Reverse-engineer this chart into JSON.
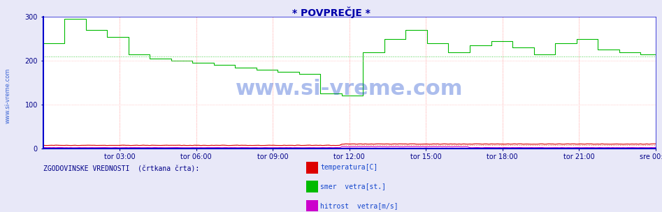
{
  "title": "* POVPREČJE *",
  "title_color": "#0000aa",
  "bg_color": "#e8e8f8",
  "plot_bg_color": "#ffffff",
  "axis_color": "#0000cc",
  "tick_color": "#000088",
  "ylim": [
    0,
    300
  ],
  "yticks": [
    0,
    100,
    200,
    300
  ],
  "xtick_labels": [
    "tor 03:00",
    "tor 06:00",
    "tor 09:00",
    "tor 12:00",
    "tor 15:00",
    "tor 18:00",
    "tor 21:00",
    "sre 00:00"
  ],
  "watermark_text": "www.si-vreme.com",
  "watermark_color": "#1144cc",
  "legend_header": "ZGODOVINSKE VREDNOSTI  (črtkana črta):",
  "legend_header_color": "#000088",
  "legend_items": [
    {
      "label": "temperatura[C]",
      "color": "#dd0000"
    },
    {
      "label": "smer  vetra[st.]",
      "color": "#00bb00"
    },
    {
      "label": "hitrost  vetra[m/s]",
      "color": "#cc00cc"
    }
  ],
  "n_points": 288,
  "wind_dir_data": [
    240,
    240,
    240,
    240,
    240,
    240,
    240,
    240,
    240,
    240,
    295,
    295,
    295,
    295,
    295,
    295,
    295,
    295,
    295,
    295,
    270,
    270,
    270,
    270,
    270,
    270,
    270,
    270,
    270,
    270,
    255,
    255,
    255,
    255,
    255,
    255,
    255,
    255,
    255,
    255,
    215,
    215,
    215,
    215,
    215,
    215,
    215,
    215,
    215,
    215,
    205,
    205,
    205,
    205,
    205,
    205,
    205,
    205,
    205,
    205,
    200,
    200,
    200,
    200,
    200,
    200,
    200,
    200,
    200,
    200,
    195,
    195,
    195,
    195,
    195,
    195,
    195,
    195,
    195,
    195,
    190,
    190,
    190,
    190,
    190,
    190,
    190,
    190,
    190,
    190,
    185,
    185,
    185,
    185,
    185,
    185,
    185,
    185,
    185,
    185,
    180,
    180,
    180,
    180,
    180,
    180,
    180,
    180,
    180,
    180,
    175,
    175,
    175,
    175,
    175,
    175,
    175,
    175,
    175,
    175,
    170,
    170,
    170,
    170,
    170,
    170,
    170,
    170,
    170,
    170,
    125,
    125,
    125,
    125,
    125,
    125,
    125,
    125,
    125,
    125,
    120,
    120,
    120,
    120,
    120,
    120,
    120,
    120,
    120,
    120,
    220,
    220,
    220,
    220,
    220,
    220,
    220,
    220,
    220,
    220,
    250,
    250,
    250,
    250,
    250,
    250,
    250,
    250,
    250,
    250,
    270,
    270,
    270,
    270,
    270,
    270,
    270,
    270,
    270,
    270,
    240,
    240,
    240,
    240,
    240,
    240,
    240,
    240,
    240,
    240,
    220,
    220,
    220,
    220,
    220,
    220,
    220,
    220,
    220,
    220,
    235,
    235,
    235,
    235,
    235,
    235,
    235,
    235,
    235,
    235,
    245,
    245,
    245,
    245,
    245,
    245,
    245,
    245,
    245,
    245,
    230,
    230,
    230,
    230,
    230,
    230,
    230,
    230,
    230,
    230,
    215,
    215,
    215,
    215,
    215,
    215,
    215,
    215,
    215,
    215,
    240,
    240,
    240,
    240,
    240,
    240,
    240,
    240,
    240,
    240,
    250,
    250,
    250,
    250,
    250,
    250,
    250,
    250,
    250,
    250,
    225,
    225,
    225,
    225,
    225,
    225,
    225,
    225,
    225,
    225,
    220,
    220,
    220,
    220,
    220,
    220,
    220,
    220,
    220,
    220,
    215,
    215,
    215,
    215,
    215,
    215,
    215,
    215
  ],
  "temp_data_base": 7,
  "wind_speed_data_base": 1.5
}
